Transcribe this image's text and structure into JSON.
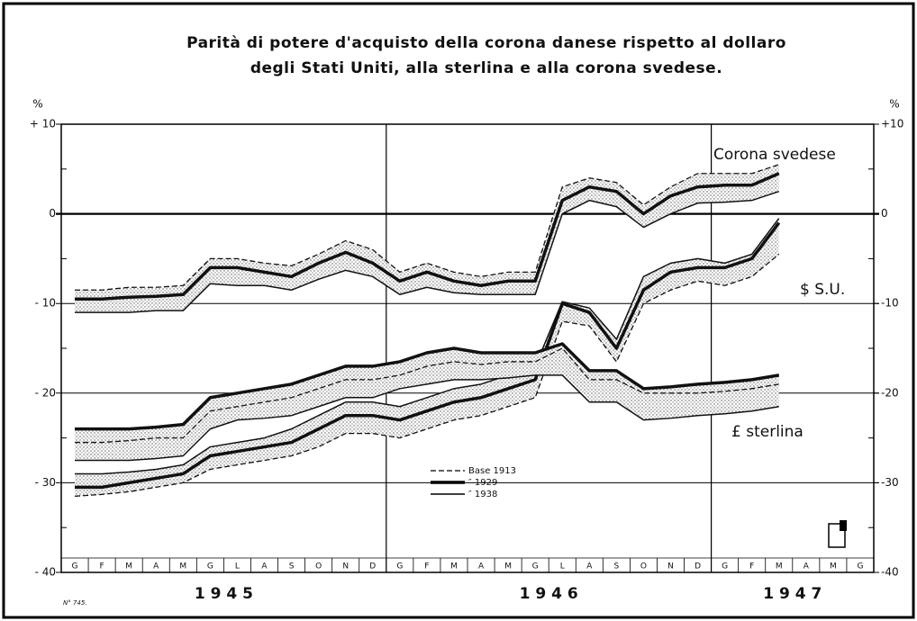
{
  "chart_data": {
    "type": "line",
    "title": [
      "Parità di potere d'acquisto della corona danese rispetto al dollaro",
      "degli Stati Uniti, alla sterlina e alla corona svedese."
    ],
    "y_unit": "%",
    "y2_unit": "%",
    "categories": [
      "G",
      "F",
      "M",
      "A",
      "M",
      "G",
      "L",
      "A",
      "S",
      "O",
      "N",
      "D",
      "G",
      "F",
      "M",
      "A",
      "M",
      "G",
      "L",
      "A",
      "S",
      "O",
      "N",
      "D",
      "G",
      "F",
      "M",
      "A",
      "M",
      "G"
    ],
    "years": [
      "1 9 4 5",
      "1 9 4 6",
      "1 9 4 7"
    ],
    "ylim": [
      -40,
      10
    ],
    "yticks": [
      {
        "value": 10,
        "label": "+ 10"
      },
      0,
      {
        "value": -10,
        "label": "- 10"
      },
      {
        "value": -20,
        "label": "- 20"
      },
      {
        "value": -30,
        "label": "- 30"
      },
      {
        "value": -40,
        "label": "- 40"
      }
    ],
    "y2lim": [
      -40,
      10
    ],
    "y2ticks": [
      {
        "value": 10,
        "label": "+10"
      },
      0,
      {
        "value": -10,
        "label": "-10"
      },
      {
        "value": -20,
        "label": "-20"
      },
      {
        "value": -30,
        "label": "-30"
      },
      {
        "value": -40,
        "label": "-40"
      }
    ],
    "yminor": [
      5,
      -5,
      -15,
      -25,
      -35
    ],
    "grid": true,
    "legend": {
      "entries": [
        "Base 1913",
        "″ 1929",
        "″ 1938"
      ],
      "styles": [
        "dashed",
        "thick",
        "thin"
      ]
    },
    "series": [
      {
        "name": "Corona svedese",
        "color": "#111",
        "lines": [
          [
            -8.5,
            -8.5,
            -8.2,
            -8.2,
            -8,
            -5,
            -5,
            -5.5,
            -5.8,
            -4.5,
            -3,
            -4,
            -6.5,
            -5.5,
            -6.5,
            -7,
            -6.5,
            -6.5,
            3,
            4,
            3.5,
            1,
            3,
            4.5,
            4.5,
            4.5,
            5.5,
            null,
            null,
            null
          ],
          [
            -9.5,
            -9.5,
            -9.3,
            -9.2,
            -9,
            -6,
            -6,
            -6.5,
            -7,
            -5.5,
            -4.3,
            -5.5,
            -7.5,
            -6.5,
            -7.5,
            -8,
            -7.5,
            -7.5,
            1.5,
            3,
            2.5,
            0,
            2,
            3,
            3.2,
            3.2,
            4.5,
            null,
            null,
            null
          ],
          [
            -11,
            -11,
            -11,
            -10.8,
            -10.8,
            -7.8,
            -8,
            -8,
            -8.5,
            -7.3,
            -6.3,
            -7,
            -9,
            -8.2,
            -8.8,
            -9,
            -9,
            -9,
            0,
            1.5,
            0.8,
            -1.5,
            0,
            1.2,
            1.3,
            1.5,
            2.5,
            null,
            null,
            null
          ]
        ]
      },
      {
        "name": "$ S.U.",
        "color": "#111",
        "lines": [
          [
            -31.5,
            -31.3,
            -31,
            -30.5,
            -30,
            -28.5,
            -28,
            -27.5,
            -27,
            -26,
            -24.5,
            -24.5,
            -25,
            -24,
            -23,
            -22.5,
            -21.5,
            -20.5,
            -12,
            -12.5,
            -16.5,
            -10,
            -8.5,
            -7.5,
            -8,
            -7,
            -4.5,
            null,
            null,
            null
          ],
          [
            -30.5,
            -30.5,
            -30,
            -29.5,
            -29,
            -27,
            -26.5,
            -26,
            -25.5,
            -24,
            -22.5,
            -22.5,
            -23,
            -22,
            -21,
            -20.5,
            -19.5,
            -18.5,
            -10,
            -11,
            -15,
            -8.5,
            -6.5,
            -6,
            -6,
            -5,
            -1,
            null,
            null,
            null
          ],
          [
            -29,
            -29,
            -28.8,
            -28.5,
            -28,
            -26,
            -25.5,
            -25,
            -24,
            -22.5,
            -21,
            -21,
            -21.5,
            -20.5,
            -19.5,
            -19,
            -18,
            -17,
            -9.8,
            -10.5,
            -14,
            -7,
            -5.5,
            -5,
            -5.5,
            -4.5,
            -0.5,
            null,
            null,
            null
          ]
        ]
      },
      {
        "name": "£ sterlina",
        "color": "#111",
        "lines": [
          [
            -25.5,
            -25.5,
            -25.3,
            -25,
            -25,
            -22,
            -21.5,
            -21,
            -20.5,
            -19.5,
            -18.5,
            -18.5,
            -18,
            -17,
            -16.5,
            -16.8,
            -16.5,
            -16.5,
            -15,
            -18.5,
            -18.5,
            -20,
            -20,
            -20,
            -19.8,
            -19.5,
            -19,
            null,
            null,
            null
          ],
          [
            -24,
            -24,
            -24,
            -23.8,
            -23.5,
            -20.5,
            -20,
            -19.5,
            -19,
            -18,
            -17,
            -17,
            -16.5,
            -15.5,
            -15,
            -15.5,
            -15.5,
            -15.5,
            -14.5,
            -17.5,
            -17.5,
            -19.5,
            -19.3,
            -19,
            -18.8,
            -18.5,
            -18,
            null,
            null,
            null
          ],
          [
            -27.5,
            -27.5,
            -27.5,
            -27.3,
            -27,
            -24,
            -23,
            -22.8,
            -22.5,
            -21.5,
            -20.5,
            -20.5,
            -19.5,
            -19,
            -18.5,
            -18.5,
            -18.3,
            -18,
            -18,
            -21,
            -21,
            -23,
            -22.8,
            -22.5,
            -22.3,
            -22,
            -21.5,
            null,
            null,
            null
          ]
        ]
      }
    ],
    "note": "N° 745."
  }
}
